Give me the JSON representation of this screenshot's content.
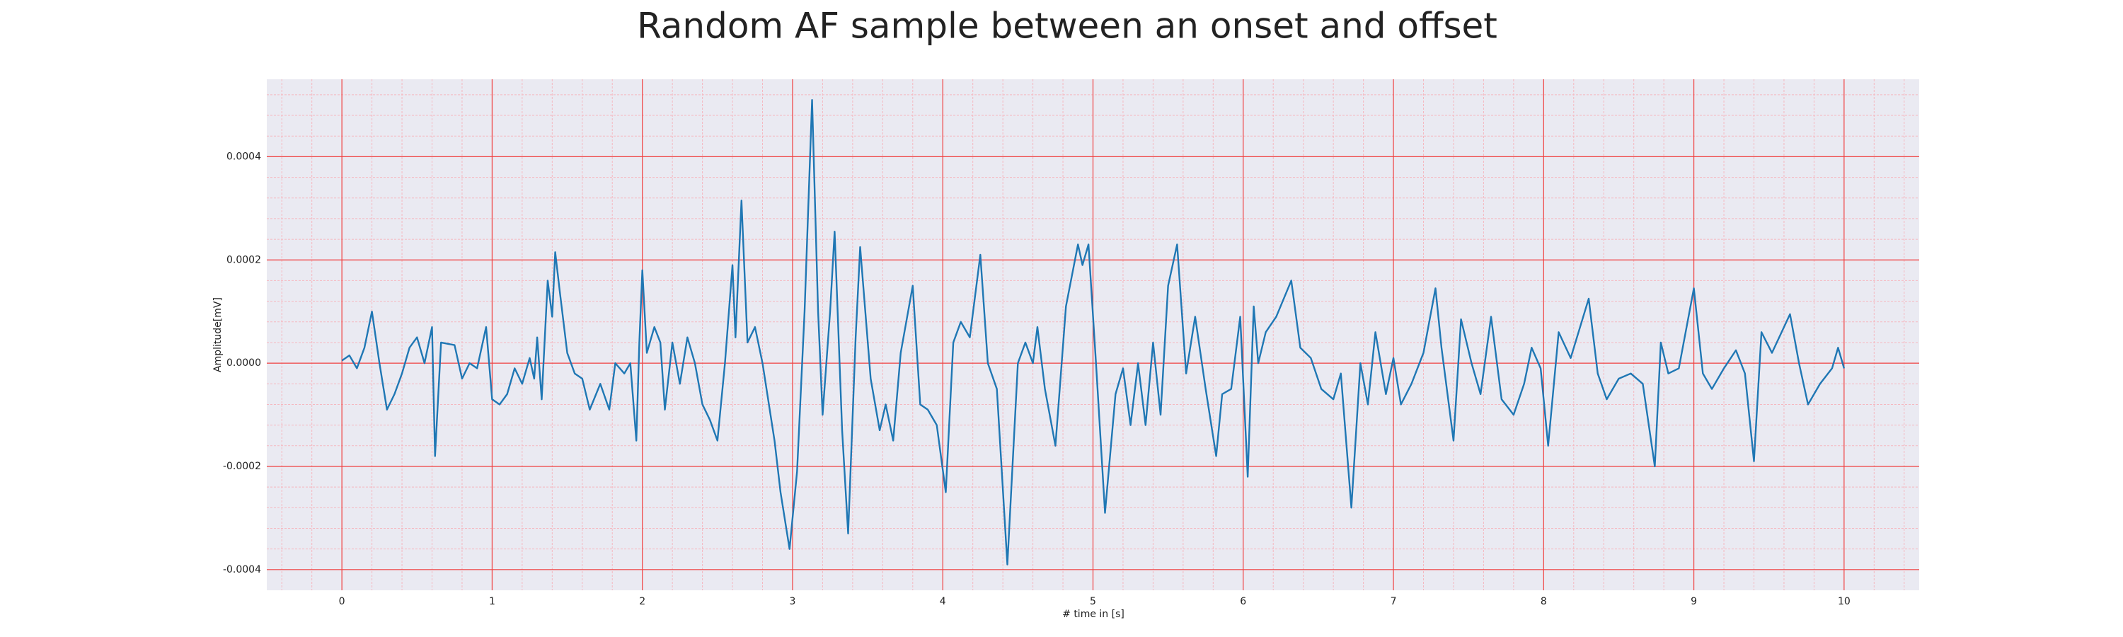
{
  "chart_data": {
    "type": "line",
    "title": "Random AF sample between an onset and offset",
    "xlabel": "# time in [s]",
    "ylabel": "Amplitude[mV]",
    "xlim": [
      -0.5,
      10.5
    ],
    "ylim": [
      -0.00044,
      0.00055
    ],
    "xticks": [
      0,
      1,
      2,
      3,
      4,
      5,
      6,
      7,
      8,
      9,
      10
    ],
    "yticks": [
      -0.0004,
      -0.0002,
      {
        "value": 0,
        "label": "0.0000"
      },
      0.0002,
      0.0004
    ],
    "xminorticks": [
      -0.4,
      -0.2,
      0.2,
      0.4,
      0.6,
      0.8,
      1.2,
      1.4,
      1.6,
      1.8,
      2.2,
      2.4,
      2.6,
      2.8,
      3.2,
      3.4,
      3.6,
      3.8,
      4.2,
      4.4,
      4.6,
      4.8,
      5.2,
      5.4,
      5.6,
      5.8,
      6.2,
      6.4,
      6.6,
      6.8,
      7.2,
      7.4,
      7.6,
      7.8,
      8.2,
      8.4,
      8.6,
      8.8,
      9.2,
      9.4,
      9.6,
      9.8,
      10.2,
      10.4
    ],
    "yminorticks": [
      -0.00036,
      -0.00032,
      -0.00028,
      -0.00024,
      -0.00016,
      -0.00012,
      -8e-05,
      -4e-05,
      4e-05,
      8e-05,
      0.00012,
      0.00016,
      0.00024,
      0.00028,
      0.00032,
      0.00036,
      0.00044,
      0.00048,
      0.00052
    ],
    "grid": true,
    "background": "#eaeaf2",
    "grid_color": "#f04040",
    "minor_grid_color": "#f5b8c0",
    "x": [
      0,
      0.05,
      0.1,
      0.15,
      0.2,
      0.25,
      0.3,
      0.35,
      0.4,
      0.45,
      0.5,
      0.55,
      0.6,
      0.62,
      0.66,
      0.75,
      0.8,
      0.85,
      0.9,
      0.96,
      1,
      1.05,
      1.1,
      1.15,
      1.2,
      1.25,
      1.28,
      1.3,
      1.33,
      1.37,
      1.4,
      1.42,
      1.45,
      1.5,
      1.55,
      1.6,
      1.65,
      1.72,
      1.78,
      1.82,
      1.88,
      1.92,
      1.96,
      1.98,
      2,
      2.03,
      2.08,
      2.12,
      2.15,
      2.2,
      2.25,
      2.3,
      2.35,
      2.4,
      2.45,
      2.5,
      2.55,
      2.6,
      2.62,
      2.66,
      2.7,
      2.75,
      2.8,
      2.88,
      2.92,
      2.98,
      3.03,
      3.08,
      3.13,
      3.17,
      3.2,
      3.25,
      3.28,
      3.33,
      3.37,
      3.42,
      3.45,
      3.52,
      3.58,
      3.62,
      3.67,
      3.72,
      3.8,
      3.85,
      3.9,
      3.96,
      4.02,
      4.07,
      4.12,
      4.18,
      4.25,
      4.3,
      4.36,
      4.43,
      4.5,
      4.55,
      4.6,
      4.63,
      4.68,
      4.75,
      4.82,
      4.9,
      4.93,
      4.97,
      5.02,
      5.08,
      5.15,
      5.2,
      5.25,
      5.3,
      5.35,
      5.4,
      5.45,
      5.5,
      5.56,
      5.62,
      5.68,
      5.75,
      5.82,
      5.86,
      5.92,
      5.98,
      6.03,
      6.07,
      6.1,
      6.15,
      6.22,
      6.32,
      6.38,
      6.45,
      6.52,
      6.6,
      6.65,
      6.72,
      6.78,
      6.83,
      6.88,
      6.95,
      7,
      7.05,
      7.12,
      7.2,
      7.28,
      7.32,
      7.4,
      7.45,
      7.52,
      7.58,
      7.65,
      7.72,
      7.8,
      7.87,
      7.92,
      7.98,
      8.03,
      8.1,
      8.18,
      8.3,
      8.36,
      8.42,
      8.5,
      8.58,
      8.66,
      8.74,
      8.78,
      8.83,
      8.9,
      9,
      9.06,
      9.12,
      9.2,
      9.28,
      9.34,
      9.4,
      9.45,
      9.52,
      9.64,
      9.7,
      9.76,
      9.84,
      9.92,
      9.96,
      10
    ],
    "series": [
      {
        "color": "#1f77b4",
        "values": [
          5e-06,
          1.5e-05,
          -1e-05,
          3e-05,
          0.0001,
          0,
          -9e-05,
          -6e-05,
          -2e-05,
          3e-05,
          5e-05,
          0,
          7e-05,
          -0.00018,
          4e-05,
          3.5e-05,
          -3e-05,
          0,
          -1e-05,
          7e-05,
          -7e-05,
          -8e-05,
          -6e-05,
          -1e-05,
          -4e-05,
          1e-05,
          -3e-05,
          5e-05,
          -7e-05,
          0.00016,
          9e-05,
          0.000215,
          0.00014,
          2e-05,
          -2e-05,
          -3e-05,
          -9e-05,
          -4e-05,
          -9e-05,
          0,
          -2e-05,
          0,
          -0.00015,
          4e-05,
          0.00018,
          2e-05,
          7e-05,
          4e-05,
          -9e-05,
          4e-05,
          -4e-05,
          5e-05,
          0,
          -8e-05,
          -0.00011,
          -0.00015,
          0,
          0.00019,
          5e-05,
          0.000315,
          4e-05,
          7e-05,
          0,
          -0.00015,
          -0.00025,
          -0.00036,
          -0.00021,
          0.0001,
          0.00051,
          0.0001,
          -0.0001,
          0.0001,
          0.000255,
          -0.00013,
          -0.00033,
          5e-05,
          0.000225,
          -3e-05,
          -0.00013,
          -8e-05,
          -0.00015,
          2e-05,
          0.00015,
          -8e-05,
          -9e-05,
          -0.00012,
          -0.00025,
          4e-05,
          8e-05,
          5e-05,
          0.00021,
          0,
          -5e-05,
          -0.00039,
          0,
          4e-05,
          0,
          7e-05,
          -5e-05,
          -0.00016,
          0.00011,
          0.00023,
          0.00019,
          0.00023,
          0,
          -0.00029,
          -6e-05,
          -1e-05,
          -0.00012,
          0,
          -0.00012,
          4e-05,
          -0.0001,
          0.00015,
          0.00023,
          -2e-05,
          9e-05,
          -5e-05,
          -0.00018,
          -6e-05,
          -5e-05,
          9e-05,
          -0.00022,
          0.00011,
          0,
          6e-05,
          9e-05,
          0.00016,
          3e-05,
          1e-05,
          -5e-05,
          -7e-05,
          -2e-05,
          -0.00028,
          0,
          -8e-05,
          6e-05,
          -6e-05,
          1e-05,
          -8e-05,
          -4e-05,
          2e-05,
          0.000145,
          3e-05,
          -0.00015,
          8.5e-05,
          0,
          -6e-05,
          9e-05,
          -7e-05,
          -0.0001,
          -4e-05,
          3e-05,
          -1e-05,
          -0.00016,
          6e-05,
          1e-05,
          0.000125,
          -2e-05,
          -7e-05,
          -3e-05,
          -2e-05,
          -4e-05,
          -0.0002,
          4e-05,
          -2e-05,
          -1e-05,
          0.000145,
          -2e-05,
          -5e-05,
          -1e-05,
          2.5e-05,
          -2e-05,
          -0.00019,
          6e-05,
          2e-05,
          9.5e-05,
          0,
          -8e-05,
          -4e-05,
          -1e-05,
          3e-05,
          -1e-05
        ]
      }
    ]
  }
}
